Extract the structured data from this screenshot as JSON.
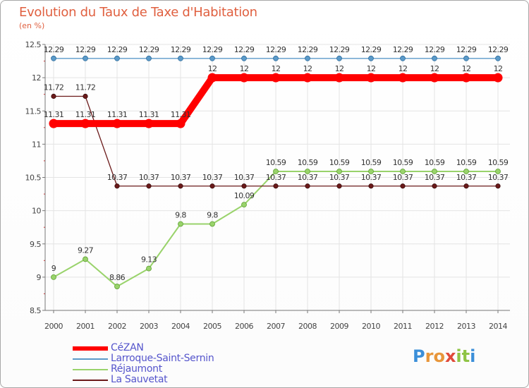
{
  "header": {
    "title": "Evolution du Taux de Taxe d'Habitation",
    "unit": "(en %)"
  },
  "chart_data": {
    "type": "line",
    "title": "Evolution du Taux de Taxe d'Habitation",
    "ylabel": "(en %)",
    "xlabel": "",
    "categories": [
      "2000",
      "2001",
      "2002",
      "2003",
      "2004",
      "2005",
      "2006",
      "2007",
      "2008",
      "2009",
      "2010",
      "2011",
      "2012",
      "2013",
      "2014"
    ],
    "ylim": [
      8.5,
      12.5
    ],
    "yticks": [
      "8.5",
      "9",
      "9.5",
      "10",
      "10.5",
      "11",
      "11.5",
      "12",
      "12.5"
    ],
    "series": [
      {
        "name": "CéZAN",
        "color": "#ff0000",
        "values": [
          11.31,
          11.31,
          11.31,
          11.31,
          11.31,
          12,
          12,
          12,
          12,
          12,
          12,
          12,
          12,
          12,
          12
        ],
        "labels": [
          "11.31",
          "11.31",
          "11.31",
          "11.31",
          "11.31",
          "12",
          "12",
          "12",
          "12",
          "12",
          "12",
          "12",
          "12",
          "12",
          "12"
        ]
      },
      {
        "name": "Larroque-Saint-Sernin",
        "color": "#5b9ac9",
        "values": [
          12.29,
          12.29,
          12.29,
          12.29,
          12.29,
          12.29,
          12.29,
          12.29,
          12.29,
          12.29,
          12.29,
          12.29,
          12.29,
          12.29,
          12.29
        ],
        "labels": [
          "12.29",
          "12.29",
          "12.29",
          "12.29",
          "12.29",
          "12.29",
          "12.29",
          "12.29",
          "12.29",
          "12.29",
          "12.29",
          "12.29",
          "12.29",
          "12.29",
          "12.29"
        ]
      },
      {
        "name": "Réjaumont",
        "color": "#99d36b",
        "values": [
          9,
          9.27,
          8.86,
          9.13,
          9.8,
          9.8,
          10.09,
          10.59,
          10.59,
          10.59,
          10.59,
          10.59,
          10.59,
          10.59,
          10.59
        ],
        "labels": [
          "9",
          "9.27",
          "8.86",
          "9.13",
          "9.8",
          "9.8",
          "10.09",
          "10.59",
          "10.59",
          "10.59",
          "10.59",
          "10.59",
          "10.59",
          "10.59",
          "10.59"
        ]
      },
      {
        "name": "La Sauvetat",
        "color": "#6b1a1a",
        "values": [
          11.72,
          11.72,
          10.37,
          10.37,
          10.37,
          10.37,
          10.37,
          10.37,
          10.37,
          10.37,
          10.37,
          10.37,
          10.37,
          10.37,
          10.37
        ],
        "labels": [
          "11.72",
          "11.72",
          "10.37",
          "10.37",
          "10.37",
          "10.37",
          "10.37",
          "10.37",
          "10.37",
          "10.37",
          "10.37",
          "10.37",
          "10.37",
          "10.37",
          "10.37"
        ]
      }
    ],
    "legend": "bottom-left"
  },
  "branding": {
    "logo_letters": [
      "P",
      "r",
      "o",
      "x",
      "i",
      "t",
      "i"
    ],
    "logo_colors": [
      "#3b8fd9",
      "#e8963a",
      "#e8963a",
      "#e04a3a",
      "#8fc445",
      "#8fc445",
      "#3b8fd9"
    ]
  }
}
